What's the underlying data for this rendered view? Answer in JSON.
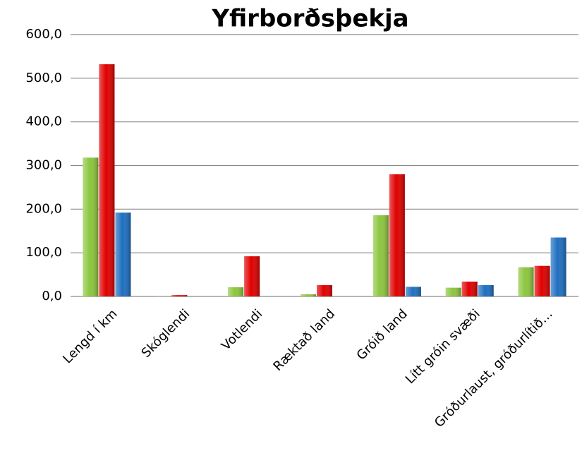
{
  "chart_data": {
    "type": "bar",
    "title": "Yfirborðsþekja",
    "categories": [
      "Lengd í km",
      "Skóglendi",
      "Votlendi",
      "Ræktað land",
      "Gróið land",
      "Lítt gróin svæði",
      "Gróðurlaust, gróðurlítið…"
    ],
    "series": [
      {
        "color": "#8cc63e",
        "values": [
          318,
          0.5,
          21,
          5,
          186,
          20,
          67
        ]
      },
      {
        "color": "#e00000",
        "values": [
          532,
          3,
          92,
          26,
          280,
          34,
          70
        ]
      },
      {
        "color": "#1e6fc0",
        "values": [
          192,
          0,
          0,
          0,
          22,
          26,
          135
        ]
      }
    ],
    "ylim": [
      0,
      600
    ],
    "yticks": [
      {
        "value": 0,
        "label": "0,0"
      },
      {
        "value": 100,
        "label": "100,0"
      },
      {
        "value": 200,
        "label": "200,0"
      },
      {
        "value": 300,
        "label": "300,0"
      },
      {
        "value": 400,
        "label": "400,0"
      },
      {
        "value": 500,
        "label": "500,0"
      },
      {
        "value": 600,
        "label": "600,0"
      }
    ],
    "grid": true
  }
}
